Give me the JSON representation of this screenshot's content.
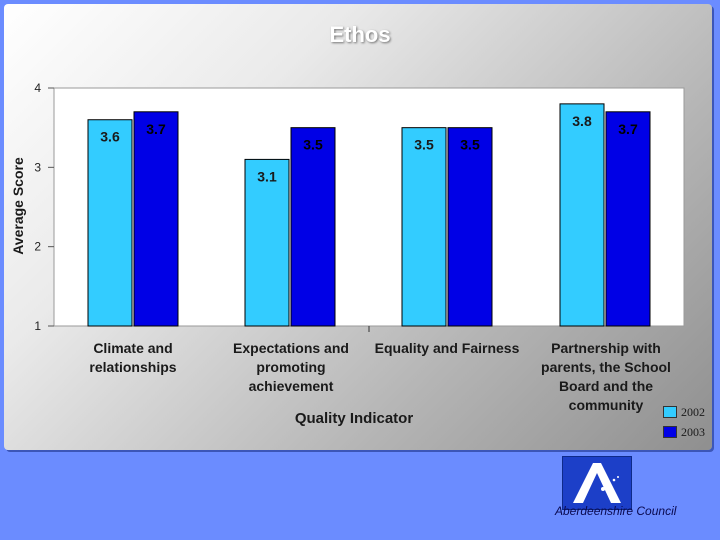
{
  "chart_data": {
    "type": "bar",
    "title": "Ethos",
    "xlabel": "Quality Indicator",
    "ylabel": "Average Score",
    "ylim": [
      1,
      4
    ],
    "yticks": [
      "1",
      "2",
      "3",
      "4"
    ],
    "categories": [
      "Climate and relationships",
      "Expectations and promoting achievement",
      "Equality and Fairness",
      "Partnership with parents, the School Board and the community"
    ],
    "series": [
      {
        "name": "2002",
        "values": [
          3.6,
          3.1,
          3.5,
          3.8
        ],
        "labels": [
          "3.6",
          "3.1",
          "3.5",
          "3.8"
        ],
        "color": "#33ccff"
      },
      {
        "name": "2003",
        "values": [
          3.7,
          3.5,
          3.5,
          3.7
        ],
        "labels": [
          "3.7",
          "3.5",
          "3.5",
          "3.7"
        ],
        "color": "#0000e6"
      }
    ],
    "legend": "bottom-right"
  },
  "footer": {
    "org_name": "Aberdeenshire Council",
    "logo_icon": "aberdeenshire-logo-icon"
  }
}
